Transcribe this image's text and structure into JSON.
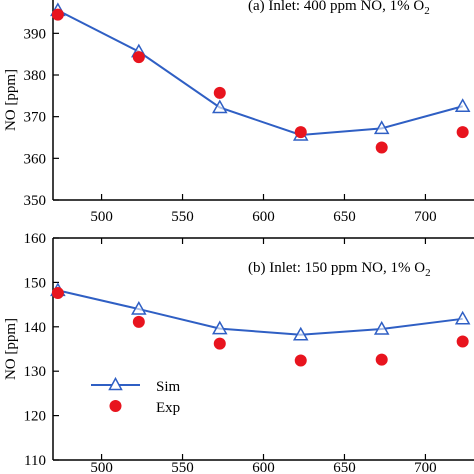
{
  "colors": {
    "sim": "#2f5fc4",
    "exp": "#e8141e",
    "axis": "#000000"
  },
  "legend": {
    "sim_label": "Sim",
    "exp_label": "Exp",
    "placement": "lower-left of panel (b)"
  },
  "chart_data": [
    {
      "type": "line",
      "panel_label": "(a) Inlet: 400 ppm NO, 1% O",
      "panel_subscript": "2",
      "ylabel": "NO [ppm]",
      "xlabel": "",
      "xlim": [
        470,
        730
      ],
      "ylim": [
        350,
        398
      ],
      "xticks": [
        500,
        550,
        600,
        650,
        700
      ],
      "yticks": [
        350,
        360,
        370,
        380,
        390
      ],
      "series": [
        {
          "name": "Sim",
          "marker": "open-triangle",
          "x": [
            473,
            523,
            573,
            623,
            673,
            723
          ],
          "y": [
            395.5,
            385.6,
            372.2,
            365.6,
            367.2,
            372.5
          ]
        },
        {
          "name": "Exp",
          "marker": "filled-circle",
          "x": [
            473,
            523,
            573,
            623,
            673,
            723
          ],
          "y": [
            394.5,
            384.3,
            375.7,
            366.3,
            362.6,
            366.3
          ]
        }
      ]
    },
    {
      "type": "line",
      "panel_label": "(b) Inlet: 150 ppm NO, 1% O",
      "panel_subscript": "2",
      "ylabel": "NO [ppm]",
      "xlabel": "",
      "xlim": [
        470,
        730
      ],
      "ylim": [
        110,
        160
      ],
      "xticks": [
        500,
        550,
        600,
        650,
        700
      ],
      "yticks": [
        110,
        120,
        130,
        140,
        150,
        160
      ],
      "series": [
        {
          "name": "Sim",
          "marker": "open-triangle",
          "x": [
            473,
            523,
            573,
            623,
            673,
            723
          ],
          "y": [
            148.2,
            144.0,
            139.6,
            138.2,
            139.5,
            141.8
          ]
        },
        {
          "name": "Exp",
          "marker": "filled-circle",
          "x": [
            473,
            523,
            573,
            623,
            673,
            723
          ],
          "y": [
            147.6,
            141.1,
            136.2,
            132.4,
            132.6,
            136.7
          ]
        }
      ]
    }
  ]
}
